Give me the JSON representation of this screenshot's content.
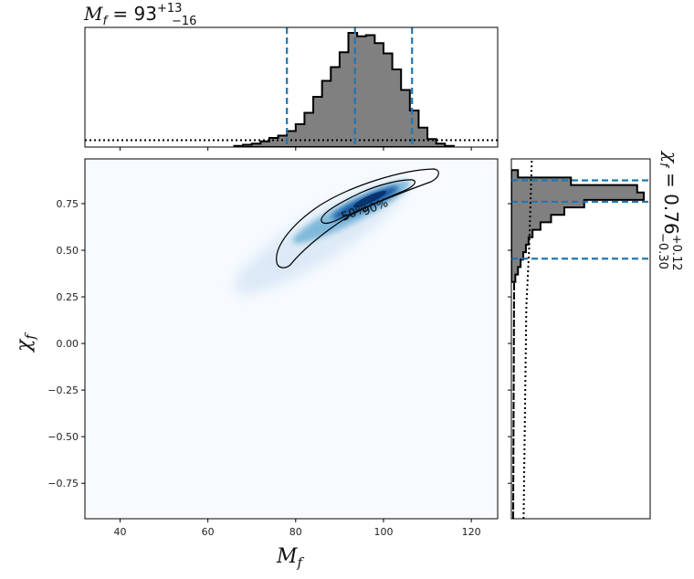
{
  "chart_data": {
    "type": "corner-density",
    "x_variable": {
      "symbol": "M",
      "subscript": "f",
      "xlim": [
        32,
        126
      ],
      "xticks": [
        40,
        60,
        80,
        100,
        120
      ]
    },
    "y_variable": {
      "symbol": "χ",
      "subscript": "f",
      "ylim": [
        -0.94,
        0.99
      ],
      "yticks": [
        "0.75",
        "0.50",
        "0.25",
        "0.00",
        "−0.25",
        "−0.50",
        "−0.75"
      ]
    },
    "m_annotation": {
      "prefix": "M",
      "sub": "f",
      "eq": " = 93",
      "plus": "+13",
      "minus": "−16"
    },
    "chi_annotation": {
      "prefix": "χ",
      "sub": "f",
      "eq": " = 0.76",
      "plus": "+0.12",
      "minus": "−0.30"
    },
    "m_credible": {
      "lower": 78,
      "median": 93.5,
      "upper": 106.5
    },
    "chi_credible": {
      "lower": 0.455,
      "median": 0.76,
      "upper": 0.875
    },
    "m_histogram": {
      "edges": [
        66,
        68,
        70,
        72,
        74,
        76,
        78,
        80,
        82,
        84,
        86,
        88,
        90,
        92,
        94,
        96,
        98,
        100,
        102,
        104,
        106,
        108,
        110,
        112,
        114,
        116
      ],
      "heights": [
        0.01,
        0.02,
        0.03,
        0.05,
        0.08,
        0.1,
        0.14,
        0.2,
        0.3,
        0.44,
        0.58,
        0.7,
        0.83,
        1.0,
        0.97,
        0.98,
        0.91,
        0.82,
        0.68,
        0.5,
        0.32,
        0.17,
        0.07,
        0.03,
        0.01
      ]
    },
    "m_prior_level": 0.06,
    "chi_histogram": {
      "edges": [
        0.33,
        0.37,
        0.41,
        0.45,
        0.49,
        0.53,
        0.57,
        0.61,
        0.65,
        0.69,
        0.73,
        0.77,
        0.81,
        0.85,
        0.89,
        0.93
      ],
      "widths": [
        0.03,
        0.05,
        0.07,
        0.09,
        0.11,
        0.13,
        0.16,
        0.22,
        0.3,
        0.4,
        0.55,
        1.0,
        0.95,
        0.45,
        0.05
      ]
    },
    "chi_prior_level": 0.12,
    "contours": [
      "50%",
      "90%"
    ],
    "colormap": "Blues",
    "line_color": "#1f77b4"
  }
}
